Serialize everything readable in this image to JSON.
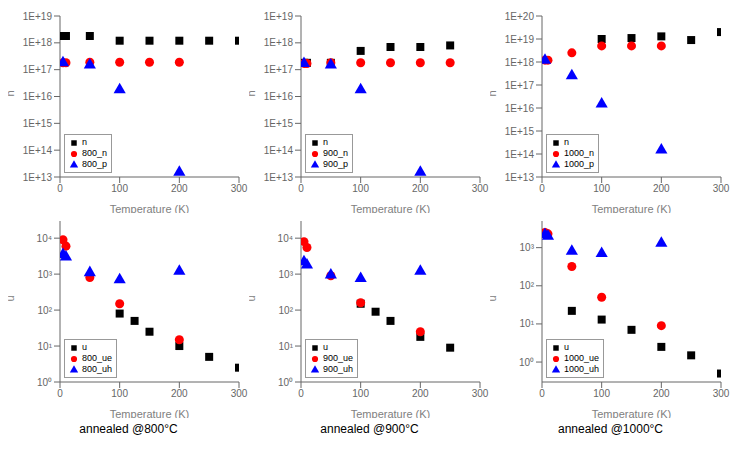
{
  "chart_data": [
    {
      "type": "scatter",
      "xlabel": "Temperature (K)",
      "ylabel": "n",
      "x": [
        5,
        10,
        50,
        100,
        150,
        200,
        250,
        300
      ],
      "series": [
        {
          "name": "n",
          "color": "black",
          "marker": "square",
          "values": [
            1.8e+18,
            1.8e+18,
            1.8e+18,
            1.2e+18,
            1.2e+18,
            1.2e+18,
            1.2e+18,
            1.2e+18
          ]
        },
        {
          "name": "800_n",
          "color": "red",
          "marker": "circle",
          "values": [
            1.8e+17,
            1.8e+17,
            1.9e+17,
            1.9e+17,
            1.9e+17,
            1.9e+17,
            null,
            null
          ]
        },
        {
          "name": "800_p",
          "color": "blue",
          "marker": "triangle",
          "values": [
            1.8e+17,
            null,
            1.5e+17,
            1.8e+16,
            null,
            15000000000000.0,
            null,
            null
          ]
        }
      ],
      "xlim": [
        0,
        300
      ],
      "xticks": [
        0,
        100,
        200,
        300
      ],
      "ylim": [
        10000000000000.0,
        1e+19
      ],
      "yticks": [
        {
          "value": 10000000000000.0,
          "label": "1E+13"
        },
        {
          "value": 100000000000000.0,
          "label": "1E+14"
        },
        {
          "value": 1000000000000000.0,
          "label": "1E+15"
        },
        {
          "value": 1e+16,
          "label": "1E+16"
        },
        {
          "value": 1e+17,
          "label": "1E+17"
        },
        {
          "value": 1e+18,
          "label": "1E+18"
        },
        {
          "value": 1e+19,
          "label": "1E+19"
        }
      ],
      "log": "y",
      "grid": false,
      "legend": "lower left"
    },
    {
      "type": "scatter",
      "xlabel": "Temperature (K)",
      "ylabel": "n",
      "x": [
        5,
        10,
        50,
        100,
        150,
        200,
        250,
        300
      ],
      "series": [
        {
          "name": "n",
          "color": "black",
          "marker": "square",
          "values": [
            1.8e+17,
            1.8e+17,
            1.8e+17,
            5e+17,
            7e+17,
            7e+17,
            8e+17,
            null
          ]
        },
        {
          "name": "900_n",
          "color": "red",
          "marker": "circle",
          "values": [
            1.7e+17,
            1.7e+17,
            1.8e+17,
            1.8e+17,
            1.8e+17,
            1.8e+17,
            1.8e+17,
            null
          ]
        },
        {
          "name": "900_p",
          "color": "blue",
          "marker": "triangle",
          "values": [
            1.7e+17,
            null,
            1.5e+17,
            1.8e+16,
            null,
            15000000000000.0,
            null,
            null
          ]
        }
      ],
      "xlim": [
        0,
        300
      ],
      "xticks": [
        0,
        100,
        200,
        300
      ],
      "ylim": [
        10000000000000.0,
        1e+19
      ],
      "yticks": [
        {
          "value": 10000000000000.0,
          "label": "1E+13"
        },
        {
          "value": 100000000000000.0,
          "label": "1E+14"
        },
        {
          "value": 1000000000000000.0,
          "label": "1E+15"
        },
        {
          "value": 1e+16,
          "label": "1E+16"
        },
        {
          "value": 1e+17,
          "label": "1E+17"
        },
        {
          "value": 1e+18,
          "label": "1E+18"
        },
        {
          "value": 1e+19,
          "label": "1E+19"
        }
      ],
      "log": "y",
      "grid": false,
      "legend": "lower left"
    },
    {
      "type": "scatter",
      "xlabel": "Temperature (K)",
      "ylabel": "n",
      "x": [
        5,
        10,
        50,
        100,
        150,
        200,
        250,
        300
      ],
      "series": [
        {
          "name": "n",
          "color": "black",
          "marker": "square",
          "values": [
            null,
            null,
            null,
            1e+19,
            1.1e+19,
            1.3e+19,
            9e+18,
            2e+19
          ]
        },
        {
          "name": "1000_n",
          "color": "red",
          "marker": "circle",
          "values": [
            1.2e+18,
            1.2e+18,
            2.5e+18,
            5e+18,
            5e+18,
            5e+18,
            null,
            null
          ]
        },
        {
          "name": "1000_p",
          "color": "blue",
          "marker": "triangle",
          "values": [
            1.2e+18,
            null,
            2.5e+17,
            1.5e+16,
            null,
            150000000000000.0,
            null,
            null
          ]
        }
      ],
      "xlim": [
        0,
        300
      ],
      "xticks": [
        0,
        100,
        200,
        300
      ],
      "ylim": [
        10000000000000.0,
        1e+20
      ],
      "yticks": [
        {
          "value": 10000000000000.0,
          "label": "1E+13"
        },
        {
          "value": 100000000000000.0,
          "label": "1E+14"
        },
        {
          "value": 1000000000000000.0,
          "label": "1E+15"
        },
        {
          "value": 1e+16,
          "label": "1E+16"
        },
        {
          "value": 1e+17,
          "label": "1E+17"
        },
        {
          "value": 1e+18,
          "label": "1E+18"
        },
        {
          "value": 1e+19,
          "label": "1E+19"
        },
        {
          "value": 1e+20,
          "label": "1E+20"
        }
      ],
      "log": "y",
      "grid": false,
      "legend": "lower left"
    },
    {
      "type": "scatter",
      "title": "annealed @800°C",
      "xlabel": "Temperature (K)",
      "ylabel": "u",
      "x": [
        5,
        10,
        50,
        100,
        125,
        150,
        200,
        250,
        300
      ],
      "series": [
        {
          "name": "u",
          "color": "black",
          "marker": "square",
          "values": [
            null,
            null,
            null,
            80,
            50,
            25,
            10,
            5,
            2.5
          ]
        },
        {
          "name": "800_ue",
          "color": "red",
          "marker": "circle",
          "values": [
            9000,
            6000,
            800,
            150,
            null,
            null,
            15,
            null,
            null
          ]
        },
        {
          "name": "800_uh",
          "color": "blue",
          "marker": "triangle",
          "values": [
            3500,
            3000,
            1100,
            700,
            null,
            null,
            1200,
            null,
            null
          ]
        }
      ],
      "xlim": [
        0,
        300
      ],
      "xticks": [
        0,
        100,
        200,
        300
      ],
      "ylim": [
        1,
        30000
      ],
      "yticks": [
        {
          "value": 1,
          "label": "10⁰"
        },
        {
          "value": 10,
          "label": "10¹"
        },
        {
          "value": 100,
          "label": "10²"
        },
        {
          "value": 1000,
          "label": "10³"
        },
        {
          "value": 10000,
          "label": "10⁴"
        }
      ],
      "log": "y",
      "grid": false,
      "legend": "lower left"
    },
    {
      "type": "scatter",
      "title": "annealed @900°C",
      "xlabel": "Temperature (K)",
      "ylabel": "u",
      "x": [
        5,
        10,
        50,
        100,
        125,
        150,
        200,
        250,
        300
      ],
      "series": [
        {
          "name": "u",
          "color": "black",
          "marker": "square",
          "values": [
            null,
            null,
            null,
            150,
            90,
            50,
            18,
            9,
            null
          ]
        },
        {
          "name": "900_ue",
          "color": "red",
          "marker": "circle",
          "values": [
            8000,
            5500,
            900,
            160,
            null,
            null,
            25,
            null,
            null
          ]
        },
        {
          "name": "900_uh",
          "color": "blue",
          "marker": "triangle",
          "values": [
            2200,
            1800,
            950,
            750,
            null,
            null,
            1200,
            null,
            null
          ]
        }
      ],
      "xlim": [
        0,
        300
      ],
      "xticks": [
        0,
        100,
        200,
        300
      ],
      "ylim": [
        1,
        30000
      ],
      "yticks": [
        {
          "value": 1,
          "label": "10⁰"
        },
        {
          "value": 10,
          "label": "10¹"
        },
        {
          "value": 100,
          "label": "10²"
        },
        {
          "value": 1000,
          "label": "10³"
        },
        {
          "value": 10000,
          "label": "10⁴"
        }
      ],
      "log": "y",
      "grid": false,
      "legend": "lower left"
    },
    {
      "type": "scatter",
      "title": "annealed @1000°C",
      "xlabel": "Temperature (K)",
      "ylabel": "u",
      "x": [
        5,
        10,
        50,
        100,
        125,
        150,
        200,
        250,
        300
      ],
      "series": [
        {
          "name": "u",
          "color": "black",
          "marker": "square",
          "values": [
            null,
            null,
            22,
            13,
            null,
            7,
            2.5,
            1.5,
            0.5
          ]
        },
        {
          "name": "1000_ue",
          "color": "red",
          "marker": "circle",
          "values": [
            2500,
            2300,
            320,
            50,
            null,
            null,
            9,
            null,
            null
          ]
        },
        {
          "name": "1000_uh",
          "color": "blue",
          "marker": "triangle",
          "values": [
            2200,
            2000,
            800,
            700,
            null,
            null,
            1300,
            null,
            null
          ]
        }
      ],
      "xlim": [
        0,
        300
      ],
      "xticks": [
        0,
        100,
        200,
        300
      ],
      "ylim": [
        0.3,
        5000
      ],
      "yticks": [
        {
          "value": 1,
          "label": "10⁰"
        },
        {
          "value": 10,
          "label": "10¹"
        },
        {
          "value": 100,
          "label": "10²"
        },
        {
          "value": 1000,
          "label": "10³"
        }
      ],
      "log": "y",
      "grid": false,
      "legend": "lower left"
    }
  ]
}
